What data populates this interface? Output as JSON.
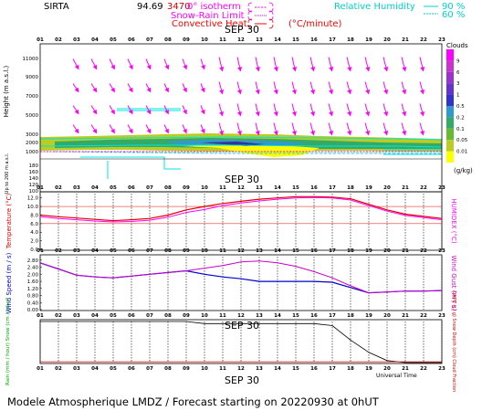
{
  "header": {
    "station": "SIRTA",
    "coords": "94.69",
    "coords_tail": "3470",
    "legend_isotherm": "0° isotherm",
    "legend_snowrain": "Snow-Rain Limit",
    "legend_convheat": "Convective Heat",
    "legend_convheat_unit": "(°C/minute)",
    "rh_label": "Relative Humidity",
    "rh_90": "90 %",
    "rh_60": "60 %",
    "date": "SEP 30"
  },
  "footer": {
    "caption": "Modele Atmospherique LMDZ / Forecast starting on 20220930 at 0hUT",
    "universal_time": "Universal Time"
  },
  "colors": {
    "isotherm": "#ff00ff",
    "snowrain": "#ff00ff",
    "convheat": "#ff0000",
    "rh": "#00e5e5",
    "temperature": "#e00000",
    "humidex": "#ff00ff",
    "wind_speed": "#0000cc",
    "wind_gust": "#cc00cc",
    "rain": "#00aa00",
    "snow": "#0000ff",
    "cape": "#cc0000",
    "snow_depth": "#0000cc",
    "cloud_fraction": "#000000"
  },
  "cloud_scale": {
    "title": "Clouds",
    "unit": "(g/kg)",
    "labels": [
      "9",
      "6",
      "3",
      "1",
      "0.5",
      "0.2",
      "0.1",
      "0.05",
      "0.01"
    ],
    "colors": [
      "#ff00ff",
      "#cc33cc",
      "#9933cc",
      "#6633cc",
      "#3333cc",
      "#3399cc",
      "#33aa66",
      "#66bb33",
      "#bbcc22",
      "#ffff00"
    ]
  },
  "chart_data": [
    {
      "type": "line",
      "panel": "height-wind-cloud",
      "ylabel": "Height (m a.s.l.)",
      "ylabel_low": "Up to 200 m a.s.l.",
      "x": [
        "01",
        "02",
        "03",
        "04",
        "05",
        "06",
        "07",
        "08",
        "09",
        "10",
        "11",
        "12",
        "13",
        "14",
        "15",
        "16",
        "17",
        "18",
        "19",
        "20",
        "21",
        "22",
        "23"
      ],
      "yticks_upper": [
        "11000",
        "9000",
        "7000",
        "5000",
        "3000",
        "2000",
        "1000"
      ],
      "yticks_lower": [
        "180",
        "160",
        "140",
        "120",
        "100"
      ],
      "isotherm_height": 1000,
      "cloud_layer_heights": [
        1800,
        2200
      ],
      "rh_cloud_band_heights": [
        1800,
        2300
      ]
    },
    {
      "type": "line",
      "panel": "temperature",
      "ylabel": "Temperature (°C)",
      "ylabel_right": "HUMIDEX (°C)",
      "yticks": [
        "12.0",
        "10.0",
        "8.0",
        "6.0",
        "4.0",
        "2.0",
        "0.0"
      ],
      "ylim": [
        0,
        13
      ],
      "series": [
        {
          "name": "Temperature",
          "values": [
            8.0,
            7.6,
            7.3,
            7.0,
            6.7,
            6.9,
            7.2,
            8.0,
            9.2,
            10.0,
            10.7,
            11.2,
            11.7,
            12.0,
            12.3,
            12.3,
            12.2,
            11.8,
            10.5,
            9.2,
            8.2,
            7.7,
            7.2
          ]
        },
        {
          "name": "HUMIDEX",
          "values": [
            7.6,
            7.2,
            6.9,
            6.6,
            6.4,
            6.5,
            6.8,
            7.5,
            8.6,
            9.3,
            10.2,
            10.8,
            11.3,
            11.7,
            12.0,
            12.1,
            12.0,
            11.5,
            10.2,
            8.9,
            7.9,
            7.4,
            6.9
          ]
        }
      ]
    },
    {
      "type": "line",
      "panel": "wind",
      "ylabel": "Wind Speed (m / s)",
      "ylabel_right": "Wind Gust (m / s)",
      "yticks": [
        "2.80",
        "2.40",
        "2.00",
        "1.60",
        "1.20",
        "0.80",
        "0.40",
        "0.00"
      ],
      "ylim": [
        0,
        3.0
      ],
      "series": [
        {
          "name": "Wind Speed",
          "values": [
            2.65,
            2.3,
            1.95,
            1.85,
            1.8,
            1.9,
            2.0,
            2.1,
            2.2,
            2.0,
            1.85,
            1.75,
            1.6,
            1.6,
            1.6,
            1.6,
            1.55,
            1.25,
            0.95,
            1.0,
            1.05,
            1.05,
            1.08
          ]
        },
        {
          "name": "Wind Gust",
          "values": [
            2.65,
            2.3,
            1.95,
            1.85,
            1.8,
            1.9,
            2.0,
            2.1,
            2.2,
            2.35,
            2.5,
            2.7,
            2.75,
            2.65,
            2.45,
            2.15,
            1.8,
            1.35,
            0.95,
            1.0,
            1.05,
            1.05,
            1.08
          ]
        }
      ]
    },
    {
      "type": "line",
      "panel": "precip",
      "ylabel": "Rain (mm / hour) Snow (cm / hour)",
      "ylabel_right": "CAPE (J / g) Snow Depth (cm) Cloud Fraction",
      "series": [
        {
          "name": "Cloud Fraction",
          "values": [
            1.0,
            1.0,
            1.0,
            1.0,
            1.0,
            1.0,
            1.0,
            1.0,
            1.0,
            0.95,
            0.95,
            0.95,
            0.95,
            0.95,
            0.95,
            0.95,
            0.9,
            0.55,
            0.25,
            0.05,
            0.0,
            0.0,
            0.0
          ]
        },
        {
          "name": "CAPE",
          "values": [
            0.02,
            0.02,
            0.02,
            0.02,
            0.02,
            0.02,
            0.02,
            0.02,
            0.02,
            0.02,
            0.02,
            0.02,
            0.02,
            0.02,
            0.02,
            0.02,
            0.02,
            0.02,
            0.02,
            0.02,
            0.02,
            0.02,
            0.02
          ]
        }
      ]
    }
  ]
}
